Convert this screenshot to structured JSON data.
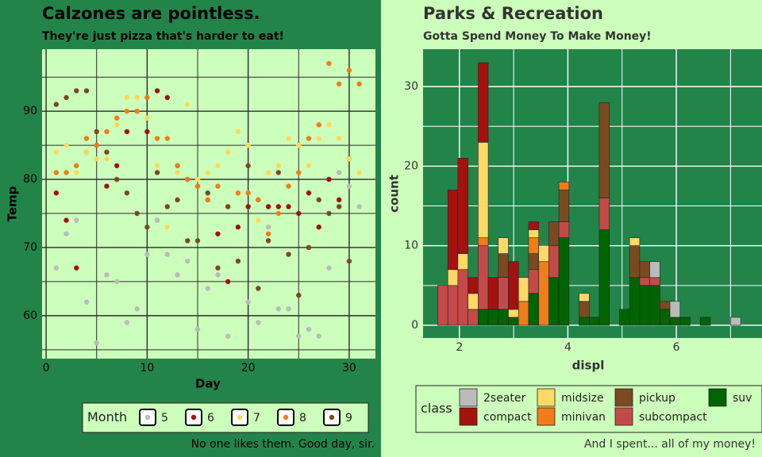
{
  "chart_data": [
    {
      "type": "scatter",
      "title": "Calzones are pointless.",
      "subtitle": "They're just pizza that's harder to eat!",
      "x_label": "Day",
      "y_label": "Temp",
      "caption": "No one likes them. Good day, sir.",
      "legend_title": "Month",
      "legend": "bottom",
      "xlim": [
        -0.4,
        32.6
      ],
      "xticks": [
        0,
        10,
        20,
        30
      ],
      "xminor": [
        5,
        15,
        25
      ],
      "ylim": [
        53.7,
        99.1
      ],
      "yticks": [
        60,
        70,
        80,
        90
      ],
      "yminor": [
        55,
        65,
        75,
        85,
        95
      ],
      "grid": true,
      "series": [
        {
          "name": "5",
          "color": "#bbbbbb",
          "x": [
            1,
            2,
            3,
            4,
            5,
            6,
            7,
            8,
            9,
            10,
            11,
            12,
            13,
            14,
            15,
            16,
            17,
            18,
            19,
            20,
            21,
            22,
            23,
            24,
            25,
            26,
            27,
            28,
            29,
            30,
            31
          ],
          "values": [
            67,
            72,
            74,
            62,
            56,
            66,
            65,
            59,
            61,
            69,
            74,
            69,
            66,
            68,
            58,
            64,
            66,
            57,
            68,
            62,
            59,
            73,
            61,
            61,
            57,
            58,
            57,
            67,
            81,
            79,
            76
          ]
        },
        {
          "name": "6",
          "color": "#a3120f",
          "x": [
            1,
            2,
            3,
            4,
            5,
            6,
            7,
            8,
            9,
            10,
            11,
            12,
            13,
            14,
            15,
            16,
            17,
            18,
            19,
            20,
            21,
            22,
            23,
            24,
            25,
            26,
            27,
            28,
            29,
            30
          ],
          "values": [
            78,
            74,
            67,
            84,
            85,
            79,
            82,
            87,
            90,
            87,
            93,
            92,
            82,
            80,
            79,
            77,
            72,
            65,
            73,
            76,
            77,
            76,
            76,
            76,
            75,
            78,
            73,
            80,
            77,
            83
          ]
        },
        {
          "name": "7",
          "color": "#ffd859",
          "x": [
            1,
            2,
            3,
            4,
            5,
            6,
            7,
            8,
            9,
            10,
            11,
            12,
            13,
            14,
            15,
            16,
            17,
            18,
            19,
            20,
            21,
            22,
            23,
            24,
            25,
            26,
            27,
            28,
            29,
            30,
            31
          ],
          "values": [
            84,
            85,
            81,
            84,
            83,
            83,
            88,
            92,
            92,
            89,
            82,
            73,
            81,
            91,
            80,
            81,
            82,
            84,
            87,
            85,
            74,
            81,
            82,
            86,
            85,
            82,
            86,
            88,
            86,
            83,
            81
          ]
        },
        {
          "name": "8",
          "color": "#f07d18",
          "x": [
            1,
            2,
            3,
            4,
            5,
            6,
            7,
            8,
            9,
            10,
            11,
            12,
            13,
            14,
            15,
            16,
            17,
            18,
            19,
            20,
            21,
            22,
            23,
            24,
            25,
            26,
            27,
            28,
            29,
            30,
            31
          ],
          "values": [
            81,
            81,
            82,
            86,
            85,
            87,
            89,
            90,
            90,
            92,
            86,
            86,
            82,
            80,
            79,
            77,
            79,
            76,
            78,
            78,
            77,
            72,
            75,
            79,
            81,
            86,
            88,
            97,
            94,
            96,
            94
          ]
        },
        {
          "name": "9",
          "color": "#7a4a20",
          "x": [
            1,
            2,
            3,
            4,
            5,
            6,
            7,
            8,
            9,
            10,
            11,
            12,
            13,
            14,
            15,
            16,
            17,
            18,
            19,
            20,
            21,
            22,
            23,
            24,
            25,
            26,
            27,
            28,
            29,
            30
          ],
          "values": [
            91,
            92,
            93,
            93,
            87,
            84,
            80,
            78,
            75,
            73,
            81,
            76,
            77,
            71,
            71,
            78,
            67,
            76,
            68,
            82,
            64,
            71,
            81,
            69,
            63,
            70,
            77,
            75,
            76,
            68
          ]
        }
      ]
    },
    {
      "type": "histogram",
      "title": "Parks & Recreation",
      "subtitle": "Gotta Spend Money To Make Money!",
      "x_label": "displ",
      "y_label": "count",
      "caption": "And I spent... all of my money!",
      "legend_title": "class",
      "legend": "bottom",
      "xlim": [
        1.33,
        7.58
      ],
      "xticks": [
        2,
        4,
        6
      ],
      "xminor": [
        3,
        5,
        7
      ],
      "ylim": [
        -1.6,
        34.7
      ],
      "yticks": [
        0,
        10,
        20,
        30
      ],
      "yminor": [
        5,
        15,
        25
      ],
      "grid": true,
      "bins": [
        1.6,
        1.786,
        1.972,
        2.159,
        2.345,
        2.531,
        2.717,
        2.903,
        3.09,
        3.276,
        3.462,
        3.648,
        3.834,
        4.021,
        4.207,
        4.393,
        4.579,
        4.766,
        4.952,
        5.138,
        5.324,
        5.51,
        5.697,
        5.883,
        6.069,
        6.255,
        6.441,
        6.628,
        6.814,
        7.0,
        7.186
      ],
      "series": [
        {
          "name": "2seater",
          "color": "#bbbbbb",
          "values": [
            0,
            0,
            0,
            0,
            0,
            0,
            0,
            0,
            0,
            0,
            0,
            0,
            0,
            0,
            0,
            0,
            0,
            0,
            0,
            0,
            0,
            2,
            0,
            2,
            0,
            0,
            0,
            0,
            0,
            1
          ]
        },
        {
          "name": "compact",
          "color": "#a3120f",
          "values": [
            0,
            10,
            12,
            2,
            10,
            4,
            0,
            6,
            0,
            1,
            0,
            0,
            0,
            0,
            0,
            0,
            0,
            0,
            0,
            0,
            0,
            0,
            0,
            0,
            0,
            0,
            0,
            0,
            0,
            0
          ]
        },
        {
          "name": "midsize",
          "color": "#ffd966",
          "values": [
            0,
            2,
            2,
            2,
            12,
            0,
            2,
            1,
            3,
            1,
            2,
            0,
            0,
            0,
            1,
            0,
            0,
            0,
            0,
            1,
            0,
            0,
            0,
            0,
            0,
            0,
            0,
            0,
            0,
            0
          ]
        },
        {
          "name": "minivan",
          "color": "#f07d18",
          "values": [
            0,
            0,
            0,
            0,
            1,
            0,
            0,
            0,
            3,
            2,
            8,
            0,
            1,
            0,
            0,
            0,
            0,
            0,
            0,
            0,
            0,
            0,
            0,
            0,
            0,
            0,
            0,
            0,
            0,
            0
          ]
        },
        {
          "name": "pickup",
          "color": "#7b4a21",
          "values": [
            0,
            0,
            0,
            0,
            0,
            0,
            3,
            0,
            0,
            2,
            0,
            3,
            4,
            0,
            2,
            0,
            12,
            0,
            0,
            4,
            2,
            0,
            1,
            0,
            0,
            0,
            0,
            0,
            0,
            0
          ]
        },
        {
          "name": "subcompact",
          "color": "#c44a4a",
          "values": [
            5,
            5,
            7,
            2,
            8,
            0,
            4,
            0,
            0,
            3,
            0,
            4,
            2,
            0,
            0,
            0,
            4,
            0,
            0,
            0,
            1,
            1,
            0,
            0,
            0,
            0,
            0,
            0,
            0,
            0
          ]
        },
        {
          "name": "suv",
          "color": "#006400",
          "values": [
            0,
            0,
            0,
            0,
            2,
            2,
            2,
            1,
            0,
            4,
            0,
            6,
            11,
            0,
            1,
            1,
            12,
            0,
            2,
            6,
            5,
            5,
            2,
            1,
            1,
            0,
            1,
            0,
            0,
            0
          ]
        }
      ]
    }
  ]
}
